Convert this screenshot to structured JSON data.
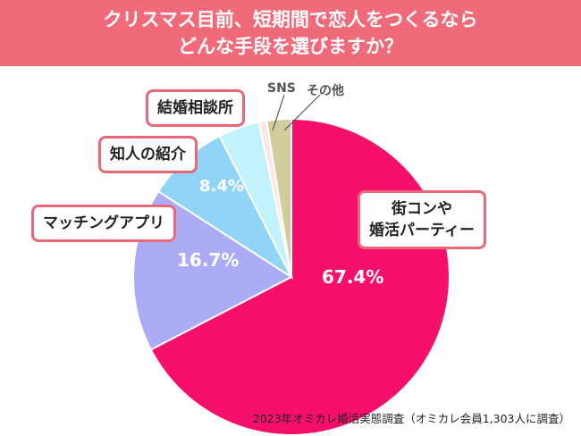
{
  "chart_data": {
    "type": "pie",
    "title": [
      "クリスマス目前、短期間で恋人をつくるなら",
      "どんな手段を選びますか？"
    ],
    "slices": [
      {
        "label": "街コンや\n婚活パーティー",
        "value": 67.4,
        "value_label": "67.4%",
        "color": "#f7106b"
      },
      {
        "label": "マッチングアプリ",
        "value": 16.7,
        "value_label": "16.7%",
        "color": "#abacf5"
      },
      {
        "label": "知人の紹介",
        "value": 8.4,
        "value_label": "8.4%",
        "color": "#90d5f8"
      },
      {
        "label": "結婚相談所",
        "value": 4.2,
        "color": "#c2f2fb"
      },
      {
        "label": "SNS",
        "value": 0.8,
        "color": "#fbe8e4"
      },
      {
        "label": "その他",
        "value": 2.5,
        "color": "#d2cd9d"
      }
    ],
    "start": "top",
    "direction": "clockwise"
  },
  "footer": "2023年オミカレ婚活実態調査（オミカレ会員1,303人に調査）"
}
